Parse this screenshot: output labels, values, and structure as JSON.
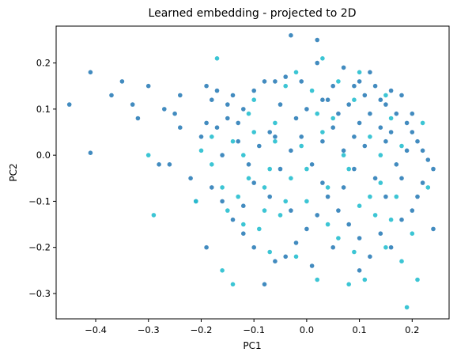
{
  "chart_data": {
    "type": "scatter",
    "title": "Learned embedding - projected to 2D",
    "xlabel": "PC1",
    "ylabel": "PC2",
    "xlim": [
      -0.475,
      0.27
    ],
    "ylim": [
      -0.355,
      0.28
    ],
    "xticks": [
      -0.4,
      -0.3,
      -0.2,
      -0.1,
      0.0,
      0.1,
      0.2
    ],
    "xtick_labels": [
      "−0.4",
      "−0.3",
      "−0.2",
      "−0.1",
      "0.0",
      "0.1",
      "0.2"
    ],
    "yticks": [
      -0.3,
      -0.2,
      -0.1,
      0.0,
      0.1,
      0.2
    ],
    "ytick_labels": [
      "−0.3",
      "−0.2",
      "−0.1",
      "0.0",
      "0.1",
      "0.2"
    ],
    "grid": false,
    "colors": {
      "group_a": "#2e7eb8",
      "group_b": "#27bfcf"
    },
    "series": [
      {
        "color": "#2e7eb8",
        "points": [
          [
            -0.45,
            0.11
          ],
          [
            -0.41,
            0.18
          ],
          [
            -0.41,
            0.005
          ],
          [
            -0.37,
            0.13
          ],
          [
            -0.35,
            0.16
          ],
          [
            -0.33,
            0.11
          ],
          [
            -0.32,
            0.08
          ],
          [
            -0.3,
            0.15
          ],
          [
            -0.27,
            0.1
          ],
          [
            -0.25,
            0.09
          ],
          [
            -0.24,
            0.13
          ],
          [
            -0.26,
            -0.02
          ],
          [
            -0.28,
            -0.02
          ],
          [
            -0.24,
            0.06
          ],
          [
            -0.22,
            -0.05
          ],
          [
            -0.19,
            0.15
          ],
          [
            -0.18,
            0.12
          ],
          [
            -0.17,
            0.14
          ],
          [
            -0.19,
            0.07
          ],
          [
            -0.2,
            0.04
          ],
          [
            -0.17,
            0.06
          ],
          [
            -0.15,
            0.11
          ],
          [
            -0.14,
            0.13
          ],
          [
            -0.13,
            0.07
          ],
          [
            -0.12,
            0.1
          ],
          [
            -0.1,
            0.14
          ],
          [
            -0.08,
            0.16
          ],
          [
            -0.06,
            0.16
          ],
          [
            -0.04,
            0.17
          ],
          [
            -0.03,
            0.26
          ],
          [
            -0.01,
            0.16
          ],
          [
            0.02,
            0.2
          ],
          [
            0.03,
            0.12
          ],
          [
            0.05,
            0.15
          ],
          [
            0.07,
            0.19
          ],
          [
            0.09,
            0.15
          ],
          [
            0.1,
            0.16
          ],
          [
            0.11,
            0.13
          ],
          [
            0.12,
            0.18
          ],
          [
            0.13,
            0.15
          ],
          [
            0.14,
            0.12
          ],
          [
            0.15,
            0.11
          ],
          [
            0.16,
            0.14
          ],
          [
            0.17,
            0.09
          ],
          [
            0.18,
            0.13
          ],
          [
            0.19,
            0.07
          ],
          [
            0.2,
            0.05
          ],
          [
            0.21,
            0.03
          ],
          [
            0.22,
            0.01
          ],
          [
            0.23,
            -0.01
          ],
          [
            0.24,
            -0.03
          ],
          [
            0.22,
            -0.06
          ],
          [
            0.21,
            -0.09
          ],
          [
            0.24,
            -0.16
          ],
          [
            0.2,
            -0.12
          ],
          [
            0.18,
            -0.14
          ],
          [
            0.16,
            -0.2
          ],
          [
            0.14,
            -0.17
          ],
          [
            0.12,
            -0.22
          ],
          [
            0.1,
            -0.18
          ],
          [
            0.08,
            -0.15
          ],
          [
            0.06,
            -0.12
          ],
          [
            0.04,
            -0.09
          ],
          [
            0.02,
            -0.13
          ],
          [
            0.0,
            -0.16
          ],
          [
            -0.02,
            -0.19
          ],
          [
            -0.04,
            -0.22
          ],
          [
            -0.06,
            -0.23
          ],
          [
            -0.08,
            -0.28
          ],
          [
            -0.1,
            -0.2
          ],
          [
            -0.12,
            -0.17
          ],
          [
            -0.14,
            -0.14
          ],
          [
            -0.16,
            -0.1
          ],
          [
            -0.18,
            -0.07
          ],
          [
            -0.19,
            -0.2
          ],
          [
            -0.21,
            -0.1
          ],
          [
            -0.16,
            0.0
          ],
          [
            -0.13,
            0.03
          ],
          [
            -0.11,
            -0.02
          ],
          [
            -0.09,
            0.02
          ],
          [
            -0.07,
            0.05
          ],
          [
            -0.05,
            -0.03
          ],
          [
            -0.03,
            0.01
          ],
          [
            -0.01,
            0.04
          ],
          [
            0.01,
            -0.02
          ],
          [
            0.03,
            0.03
          ],
          [
            0.05,
            0.06
          ],
          [
            0.07,
            0.01
          ],
          [
            0.09,
            -0.03
          ],
          [
            0.11,
            0.02
          ],
          [
            0.13,
            -0.05
          ],
          [
            0.15,
            0.03
          ],
          [
            0.17,
            -0.02
          ],
          [
            0.19,
            0.01
          ],
          [
            0.14,
            0.06
          ],
          [
            0.12,
            0.09
          ],
          [
            0.1,
            0.07
          ],
          [
            0.08,
            0.11
          ],
          [
            0.06,
            0.09
          ],
          [
            0.04,
            0.12
          ],
          [
            0.0,
            0.1
          ],
          [
            -0.02,
            0.08
          ],
          [
            -0.05,
            0.11
          ],
          [
            0.03,
            -0.06
          ],
          [
            -0.07,
            -0.09
          ],
          [
            -0.1,
            -0.06
          ],
          [
            0.07,
            -0.07
          ],
          [
            0.15,
            -0.09
          ],
          [
            0.18,
            -0.05
          ],
          [
            0.05,
            -0.2
          ],
          [
            -0.03,
            -0.12
          ],
          [
            0.01,
            -0.24
          ],
          [
            0.1,
            -0.25
          ],
          [
            -0.15,
            0.08
          ],
          [
            0.2,
            0.09
          ],
          [
            -0.12,
            -0.11
          ],
          [
            0.16,
            0.05
          ],
          [
            0.09,
            0.04
          ],
          [
            -0.06,
            0.04
          ],
          [
            0.02,
            0.25
          ]
        ]
      },
      {
        "color": "#27bfcf",
        "points": [
          [
            -0.3,
            0.0
          ],
          [
            -0.29,
            -0.13
          ],
          [
            -0.21,
            -0.1
          ],
          [
            -0.18,
            -0.02
          ],
          [
            -0.17,
            0.21
          ],
          [
            -0.16,
            -0.25
          ],
          [
            -0.15,
            -0.12
          ],
          [
            -0.14,
            -0.28
          ],
          [
            -0.13,
            -0.09
          ],
          [
            -0.12,
            0.0
          ],
          [
            -0.11,
            -0.05
          ],
          [
            -0.1,
            0.12
          ],
          [
            -0.09,
            -0.16
          ],
          [
            -0.08,
            -0.07
          ],
          [
            -0.07,
            -0.21
          ],
          [
            -0.06,
            0.03
          ],
          [
            -0.05,
            -0.13
          ],
          [
            -0.04,
            0.15
          ],
          [
            -0.03,
            -0.05
          ],
          [
            -0.02,
            -0.22
          ],
          [
            -0.01,
            0.02
          ],
          [
            0.0,
            -0.1
          ],
          [
            0.01,
            0.14
          ],
          [
            0.02,
            -0.27
          ],
          [
            0.03,
            0.05
          ],
          [
            0.04,
            -0.07
          ],
          [
            0.05,
            0.08
          ],
          [
            0.06,
            -0.18
          ],
          [
            0.07,
            0.0
          ],
          [
            0.08,
            -0.03
          ],
          [
            0.09,
            0.12
          ],
          [
            0.1,
            -0.11
          ],
          [
            0.11,
            -0.27
          ],
          [
            0.12,
            0.04
          ],
          [
            0.13,
            -0.13
          ],
          [
            0.14,
            -0.06
          ],
          [
            0.15,
            -0.2
          ],
          [
            0.16,
            0.08
          ],
          [
            0.17,
            -0.09
          ],
          [
            0.18,
            -0.23
          ],
          [
            0.19,
            -0.33
          ],
          [
            0.2,
            -0.17
          ],
          [
            0.21,
            -0.27
          ],
          [
            0.22,
            0.07
          ],
          [
            0.23,
            -0.07
          ],
          [
            0.18,
            0.02
          ],
          [
            0.16,
            -0.14
          ],
          [
            0.14,
            0.0
          ],
          [
            0.12,
            -0.09
          ],
          [
            0.1,
            0.18
          ],
          [
            0.08,
            -0.28
          ],
          [
            0.06,
            0.16
          ],
          [
            0.04,
            -0.15
          ],
          [
            0.02,
            0.09
          ],
          [
            0.0,
            -0.03
          ],
          [
            -0.02,
            0.18
          ],
          [
            -0.04,
            -0.1
          ],
          [
            -0.06,
            0.07
          ],
          [
            -0.08,
            -0.12
          ],
          [
            -0.1,
            0.05
          ],
          [
            -0.12,
            -0.15
          ],
          [
            -0.14,
            0.03
          ],
          [
            -0.16,
            -0.07
          ],
          [
            -0.18,
            0.04
          ],
          [
            -0.2,
            0.01
          ],
          [
            -0.11,
            0.09
          ],
          [
            -0.07,
            -0.03
          ],
          [
            0.03,
            0.21
          ],
          [
            0.09,
            -0.21
          ],
          [
            0.15,
            0.13
          ]
        ]
      }
    ]
  }
}
